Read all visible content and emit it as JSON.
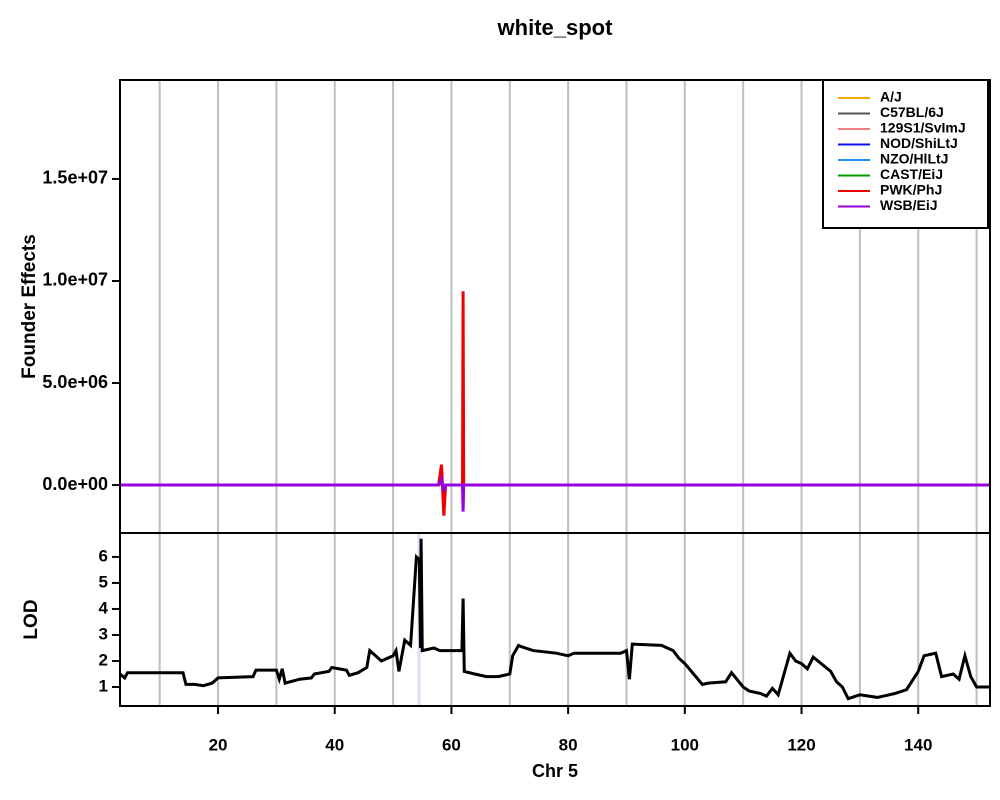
{
  "chart_data": [
    {
      "type": "line",
      "title": "white_spot",
      "ylabel": "Founder Effects",
      "x": [
        3.2,
        57.8,
        58.3,
        58.7,
        59.0,
        61.9,
        62.0,
        62.1,
        152.3
      ],
      "series": [
        {
          "name": "A/J",
          "color": "#F0A800",
          "values": [
            0,
            0,
            100000,
            -100000,
            0,
            0,
            100000,
            0,
            0
          ]
        },
        {
          "name": "C57BL/6J",
          "color": "#555555",
          "values": [
            0,
            0,
            100000,
            -100000,
            0,
            0,
            0,
            0,
            0
          ]
        },
        {
          "name": "129S1/SvImJ",
          "color": "#F08080",
          "values": [
            0,
            0,
            150000,
            -150000,
            0,
            0,
            0,
            0,
            0
          ]
        },
        {
          "name": "NOD/ShiLtJ",
          "color": "#1010F0",
          "values": [
            0,
            0,
            100000,
            -100000,
            0,
            0,
            0,
            0,
            0
          ]
        },
        {
          "name": "NZO/HlLtJ",
          "color": "#1E90FF",
          "values": [
            0,
            0,
            100000,
            -100000,
            0,
            0,
            0,
            0,
            0
          ]
        },
        {
          "name": "CAST/EiJ",
          "color": "#009900",
          "values": [
            0,
            0,
            100000,
            -100000,
            0,
            0,
            0,
            0,
            0
          ]
        },
        {
          "name": "PWK/PhJ",
          "color": "#F00000",
          "values": [
            0,
            0,
            1000000,
            -1500000,
            0,
            0,
            9500000,
            0,
            0
          ]
        },
        {
          "name": "WSB/EiJ",
          "color": "#9900E0",
          "values": [
            0,
            0,
            300000,
            -300000,
            0,
            0,
            -1300000,
            0,
            0
          ]
        }
      ],
      "xlim": [
        3.2,
        152.3
      ],
      "ylim": [
        -2350000,
        19850000
      ],
      "yticks": [
        {
          "value": 0,
          "label": "0.0e+00"
        },
        {
          "value": 5000000,
          "label": "5.0e+06"
        },
        {
          "value": 10000000,
          "label": "1.0e+07"
        },
        {
          "value": 15000000,
          "label": "1.5e+07"
        }
      ],
      "xgrid": [
        10,
        20,
        30,
        40,
        50,
        60,
        70,
        80,
        90,
        100,
        110,
        120,
        130,
        140,
        150
      ],
      "legend": "topright"
    },
    {
      "type": "line",
      "ylabel": "LOD",
      "xlabel": "Chr 5",
      "color": "#000000",
      "x": [
        3.2,
        4,
        4.5,
        14,
        14.5,
        16,
        17.5,
        19,
        20,
        26,
        26.5,
        30,
        30.5,
        31,
        31.5,
        34,
        36,
        36.5,
        39,
        39.5,
        42,
        42.5,
        44,
        45.5,
        46,
        47,
        48,
        50,
        50.5,
        51,
        52,
        53,
        54,
        54.5,
        54.7,
        54.8,
        55,
        57,
        58,
        61.8,
        62,
        62.2,
        64,
        66,
        68,
        70,
        70.5,
        71.5,
        72,
        74,
        78,
        80,
        81,
        84,
        89,
        90,
        90.5,
        91,
        96,
        98,
        99,
        100,
        103,
        104,
        107,
        108,
        110,
        111,
        113,
        114,
        115,
        116,
        117,
        118,
        119,
        120,
        121,
        122,
        125,
        126,
        127,
        128,
        130,
        133,
        136,
        138,
        140,
        141,
        143,
        144,
        146,
        147,
        148,
        149,
        150,
        152.3
      ],
      "values": [
        1.5,
        1.35,
        1.55,
        1.55,
        1.1,
        1.1,
        1.05,
        1.15,
        1.35,
        1.4,
        1.65,
        1.65,
        1.3,
        1.7,
        1.15,
        1.3,
        1.35,
        1.5,
        1.6,
        1.75,
        1.65,
        1.45,
        1.55,
        1.75,
        2.4,
        2.2,
        2.0,
        2.2,
        2.4,
        1.6,
        2.8,
        2.6,
        6.0,
        5.9,
        2.5,
        6.7,
        2.4,
        2.5,
        2.4,
        2.4,
        4.4,
        1.6,
        1.5,
        1.4,
        1.4,
        1.5,
        2.2,
        2.6,
        2.55,
        2.4,
        2.3,
        2.2,
        2.3,
        2.3,
        2.3,
        2.4,
        1.3,
        2.65,
        2.6,
        2.4,
        2.1,
        1.9,
        1.1,
        1.15,
        1.2,
        1.55,
        1.0,
        0.85,
        0.75,
        0.65,
        0.95,
        0.7,
        1.5,
        2.3,
        2.0,
        1.9,
        1.7,
        2.15,
        1.6,
        1.2,
        1.0,
        0.55,
        0.7,
        0.6,
        0.75,
        0.9,
        1.6,
        2.2,
        2.3,
        1.4,
        1.5,
        1.3,
        2.2,
        1.4,
        1.0,
        1.0
      ],
      "interval": [
        54.2,
        54.7
      ],
      "xlim": [
        3.2,
        152.3
      ],
      "ylim": [
        0.27,
        6.92
      ],
      "yticks": [
        1,
        2,
        3,
        4,
        5,
        6
      ],
      "xticks": [
        20,
        40,
        60,
        80,
        100,
        120,
        140
      ],
      "xgrid": [
        10,
        20,
        30,
        40,
        50,
        60,
        70,
        80,
        90,
        100,
        110,
        120,
        130,
        140,
        150
      ]
    }
  ]
}
